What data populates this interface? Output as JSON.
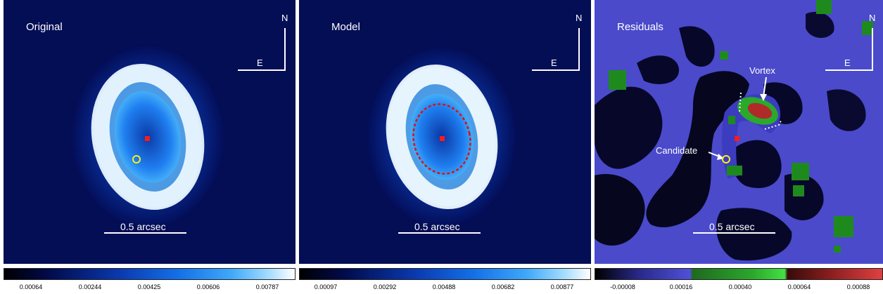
{
  "panels": [
    {
      "title": "Original",
      "north": "N",
      "east": "E",
      "scalebar": "0.5 arcsec"
    },
    {
      "title": "Model",
      "north": "N",
      "east": "E",
      "scalebar": "0.5 arcsec"
    },
    {
      "title": "Residuals",
      "north": "N",
      "east": "E",
      "scalebar": "0.5 arcsec",
      "annotations": {
        "vortex": "Vortex",
        "candidate": "Candidate"
      }
    }
  ],
  "colorbars": [
    {
      "ticks": [
        "0.00064",
        "0.00244",
        "0.00425",
        "0.00606",
        "0.00787"
      ]
    },
    {
      "ticks": [
        "0.00097",
        "0.00292",
        "0.00488",
        "0.00682",
        "0.00877"
      ]
    },
    {
      "ticks": [
        "-0.00008",
        "0.00016",
        "0.00040",
        "0.00064",
        "0.00088"
      ]
    }
  ],
  "colors": {
    "original_low": "#020a4a",
    "original_mid": "#1470e8",
    "original_high": "#ffffff",
    "residual_bg": "#4646c8",
    "residual_green": "#1e8a1e",
    "residual_red": "#b02a2a",
    "center_marker": "#ff1a1a",
    "candidate_ring": "#f5f01a",
    "model_ellipse": "#ff1a1a"
  }
}
